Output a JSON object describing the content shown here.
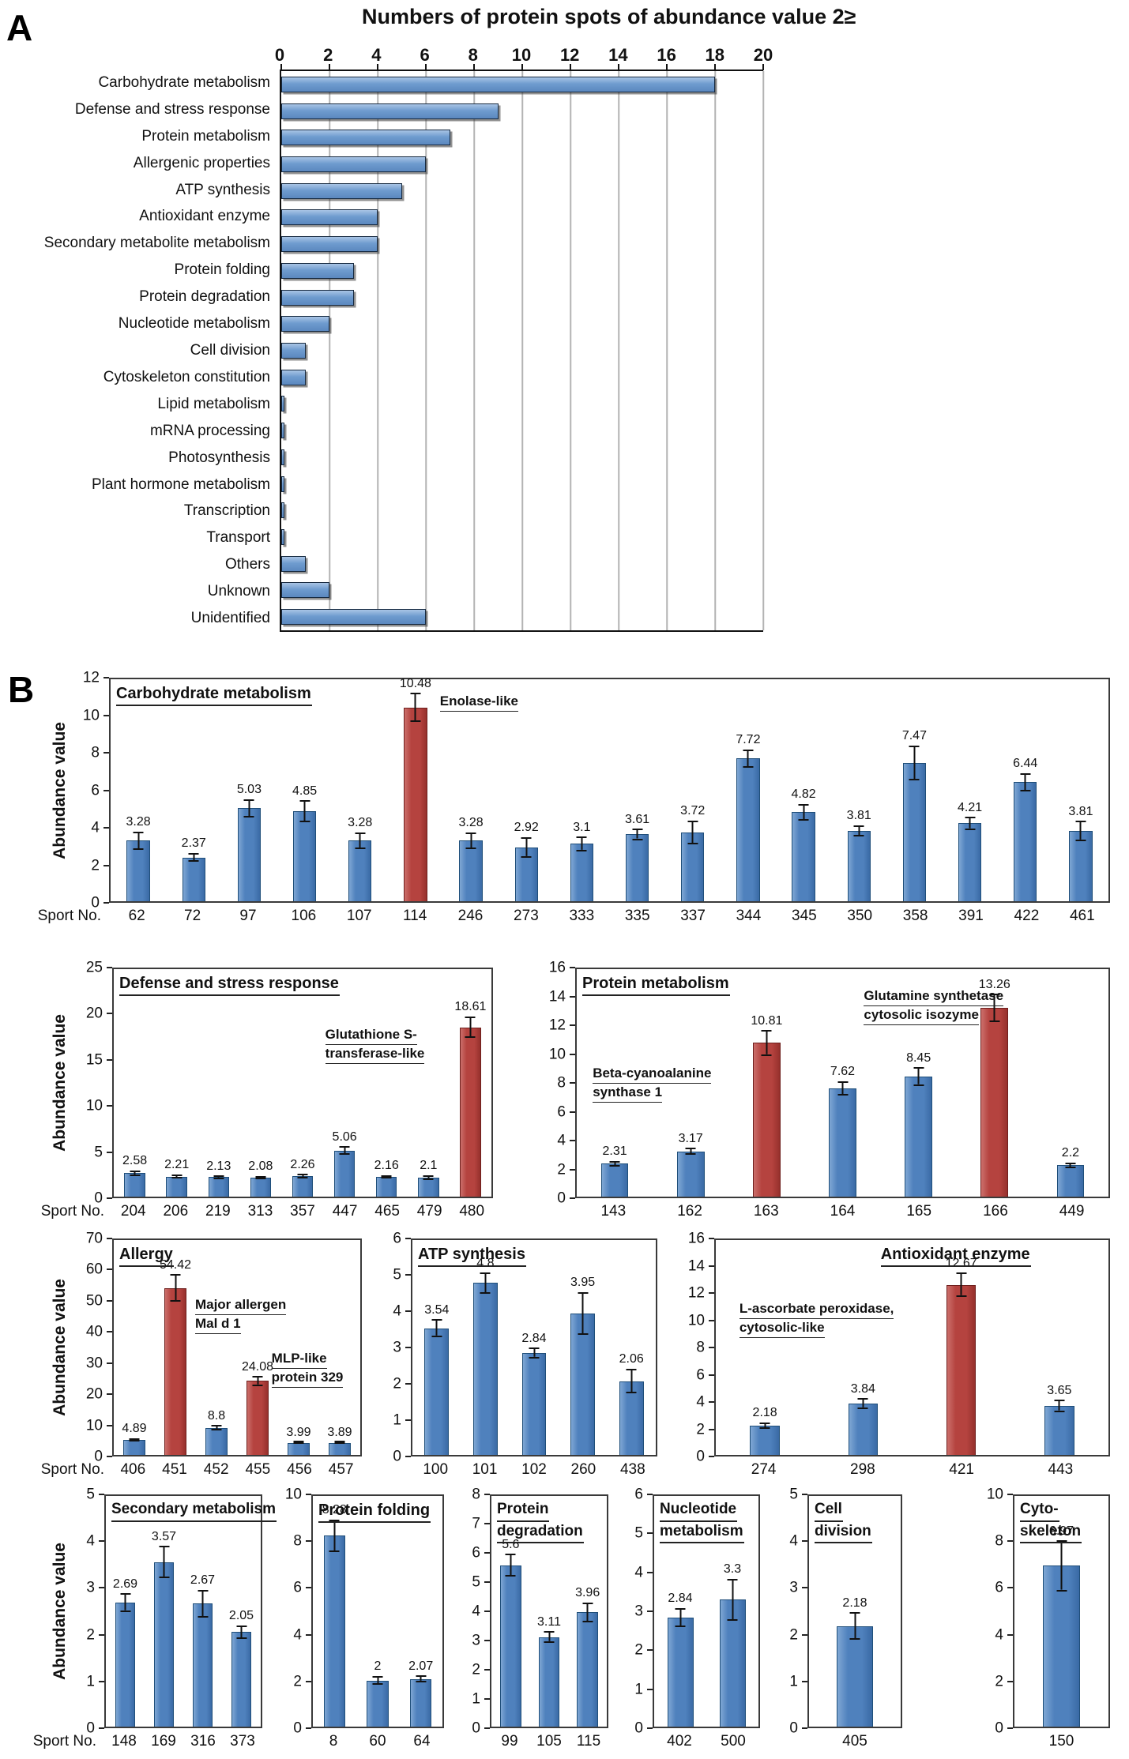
{
  "panels": {
    "a": "A",
    "b": "B"
  },
  "axes": {
    "ylabel": "Abundance value",
    "xprefix": "Sport No."
  },
  "colors": {
    "bar_blue": "#4f81bd",
    "bar_red": "#b5433f",
    "panel_a_bar": "#6f9ccf",
    "gridline": "#b3b3b3"
  },
  "chart_data": [
    {
      "id": "spot_counts",
      "type": "bar",
      "orientation": "horizontal",
      "title": "Numbers of protein spots of abundance value 2≥",
      "xlim": [
        0,
        20
      ],
      "xticks": [
        0,
        2,
        4,
        6,
        8,
        10,
        12,
        14,
        16,
        18,
        20
      ],
      "categories": [
        "Carbohydrate metabolism",
        "Defense and stress response",
        "Protein metabolism",
        "Allergenic properties",
        "ATP synthesis",
        "Antioxidant enzyme",
        "Secondary metabolite metabolism",
        "Protein folding",
        "Protein degradation",
        "Nucleotide metabolism",
        "Cell division",
        "Cytoskeleton constitution",
        "Lipid metabolism",
        "mRNA processing",
        "Photosynthesis",
        "Plant hormone metabolism",
        "Transcription",
        "Transport",
        "Others",
        "Unknown",
        "Unidentified"
      ],
      "values": [
        18,
        9,
        7,
        6,
        5,
        4,
        4,
        3,
        3,
        2,
        1,
        1,
        0,
        0,
        0,
        0,
        0,
        0,
        1,
        2,
        6
      ]
    },
    {
      "id": "carbohydrate_metabolism",
      "type": "bar",
      "title": "Carbohydrate metabolism",
      "ylim": [
        0,
        12
      ],
      "yticks": [
        0,
        2,
        4,
        6,
        8,
        10,
        12
      ],
      "categories": [
        "62",
        "72",
        "97",
        "106",
        "107",
        "114",
        "246",
        "273",
        "333",
        "335",
        "337",
        "344",
        "345",
        "350",
        "358",
        "391",
        "422",
        "461"
      ],
      "values": [
        3.28,
        2.37,
        5.03,
        4.85,
        3.28,
        10.48,
        3.28,
        2.92,
        3.1,
        3.61,
        3.72,
        7.72,
        4.82,
        3.81,
        7.47,
        4.21,
        6.44,
        3.81
      ],
      "errors": [
        0.5,
        0.25,
        0.5,
        0.6,
        0.45,
        0.8,
        0.45,
        0.55,
        0.4,
        0.3,
        0.65,
        0.5,
        0.45,
        0.3,
        0.95,
        0.35,
        0.5,
        0.55
      ],
      "red": [
        5
      ],
      "bar_ratio": 0.42,
      "show_ylabel": true,
      "show_xprefix": true,
      "annotations": [
        {
          "lines": [
            "Enolase-like"
          ],
          "x": 33,
          "y": 6
        }
      ]
    },
    {
      "id": "defense_stress_response",
      "type": "bar",
      "title": "Defense and stress response",
      "ylim": [
        0,
        25
      ],
      "yticks": [
        0,
        5,
        10,
        15,
        20,
        25
      ],
      "categories": [
        "204",
        "206",
        "219",
        "313",
        "357",
        "447",
        "465",
        "479",
        "480"
      ],
      "values": [
        2.58,
        2.21,
        2.13,
        2.08,
        2.26,
        5.06,
        2.16,
        2.1,
        18.61
      ],
      "errors": [
        0.3,
        0.25,
        0.2,
        0.2,
        0.25,
        0.5,
        0.2,
        0.25,
        1.2
      ],
      "red": [
        8
      ],
      "bar_ratio": 0.5,
      "show_ylabel": true,
      "show_xprefix": true,
      "annotations": [
        {
          "lines": [
            "Glutathione S-",
            "transferase-like"
          ],
          "x": 56,
          "y": 25
        }
      ]
    },
    {
      "id": "protein_metabolism",
      "type": "bar",
      "title": "Protein metabolism",
      "ylim": [
        0,
        16
      ],
      "yticks": [
        0,
        2,
        4,
        6,
        8,
        10,
        12,
        14,
        16
      ],
      "categories": [
        "143",
        "162",
        "163",
        "164",
        "165",
        "166",
        "449"
      ],
      "values": [
        2.31,
        3.17,
        10.81,
        7.62,
        8.45,
        13.26,
        2.2
      ],
      "errors": [
        0.2,
        0.25,
        0.9,
        0.5,
        0.65,
        1.0,
        0.2
      ],
      "red": [
        2,
        5
      ],
      "bar_ratio": 0.36,
      "annotations": [
        {
          "lines": [
            "Beta-cyanoalanine",
            "synthase 1"
          ],
          "x": 3,
          "y": 42
        },
        {
          "lines": [
            "Glutamine synthetase",
            "cytosolic isozyme"
          ],
          "x": 54,
          "y": 8
        }
      ]
    },
    {
      "id": "allergy",
      "type": "bar",
      "title": "Allergy",
      "ylim": [
        0,
        70
      ],
      "yticks": [
        0,
        10,
        20,
        30,
        40,
        50,
        60,
        70
      ],
      "categories": [
        "406",
        "451",
        "452",
        "455",
        "456",
        "457"
      ],
      "values": [
        4.89,
        54.42,
        8.8,
        24.08,
        3.99,
        3.89
      ],
      "errors": [
        0.6,
        4.5,
        0.9,
        1.6,
        0.4,
        0.4
      ],
      "red": [
        1,
        3
      ],
      "bar_ratio": 0.52,
      "show_ylabel": true,
      "show_xprefix": true,
      "annotations": [
        {
          "lines": [
            "Major allergen",
            "Mal d 1"
          ],
          "x": 33,
          "y": 26
        },
        {
          "lines": [
            "MLP-like",
            "protein 329"
          ],
          "x": 64,
          "y": 51
        }
      ]
    },
    {
      "id": "atp_synthesis",
      "type": "bar",
      "title": "ATP synthesis",
      "ylim": [
        0,
        6
      ],
      "yticks": [
        0,
        1,
        2,
        3,
        4,
        5,
        6
      ],
      "categories": [
        "100",
        "101",
        "102",
        "260",
        "438"
      ],
      "values": [
        3.54,
        4.8,
        2.84,
        3.95,
        2.06
      ],
      "errors": [
        0.25,
        0.3,
        0.15,
        0.6,
        0.35
      ],
      "bar_ratio": 0.5
    },
    {
      "id": "antioxidant_enzyme",
      "type": "bar",
      "title": "Antioxidant enzyme",
      "ylim": [
        0,
        16
      ],
      "yticks": [
        0,
        2,
        4,
        6,
        8,
        10,
        12,
        14,
        16
      ],
      "categories": [
        "274",
        "298",
        "421",
        "443"
      ],
      "values": [
        2.18,
        3.84,
        12.67,
        3.65
      ],
      "errors": [
        0.25,
        0.4,
        0.9,
        0.45
      ],
      "red": [
        2
      ],
      "bar_ratio": 0.3,
      "annotations": [
        {
          "lines": [
            "L-ascorbate peroxidase,",
            "cytosolic-like"
          ],
          "x": 6,
          "y": 28
        }
      ]
    },
    {
      "id": "secondary_metabolism",
      "type": "bar",
      "title": "Secondary metabolism",
      "ylim": [
        0,
        5
      ],
      "yticks": [
        0,
        1,
        2,
        3,
        4,
        5
      ],
      "categories": [
        "148",
        "169",
        "316",
        "373"
      ],
      "values": [
        2.69,
        3.57,
        2.67,
        2.05
      ],
      "errors": [
        0.2,
        0.35,
        0.3,
        0.15
      ],
      "bar_ratio": 0.5,
      "show_ylabel": true,
      "show_xprefix": true
    },
    {
      "id": "protein_folding",
      "type": "bar",
      "title": "Protein folding",
      "ylim": [
        0,
        10
      ],
      "yticks": [
        0,
        2,
        4,
        6,
        8,
        10
      ],
      "categories": [
        "8",
        "60",
        "64"
      ],
      "values": [
        8.28,
        2,
        2.07
      ],
      "errors": [
        0.7,
        0.2,
        0.15
      ],
      "bar_ratio": 0.5
    },
    {
      "id": "protein_degradation",
      "type": "bar",
      "title": "Protein\ndegradation",
      "ylim": [
        0,
        8
      ],
      "yticks": [
        0,
        1,
        2,
        3,
        4,
        5,
        6,
        7,
        8
      ],
      "categories": [
        "99",
        "105",
        "115"
      ],
      "values": [
        5.6,
        3.11,
        3.96
      ],
      "errors": [
        0.4,
        0.2,
        0.35
      ],
      "bar_ratio": 0.55
    },
    {
      "id": "nucleotide_metabolism",
      "type": "bar",
      "title": "Nucleotide\nmetabolism",
      "ylim": [
        0,
        6
      ],
      "yticks": [
        0,
        1,
        2,
        3,
        4,
        5,
        6
      ],
      "categories": [
        "402",
        "500"
      ],
      "values": [
        2.84,
        3.3
      ],
      "errors": [
        0.25,
        0.55
      ],
      "bar_ratio": 0.5
    },
    {
      "id": "cell_division",
      "type": "bar",
      "title": "Cell\ndivision",
      "ylim": [
        0,
        5
      ],
      "yticks": [
        0,
        1,
        2,
        3,
        4,
        5
      ],
      "categories": [
        "405"
      ],
      "values": [
        2.18
      ],
      "errors": [
        0.3
      ],
      "bar_ratio": 0.4
    },
    {
      "id": "cytoskeleton",
      "type": "bar",
      "title": "Cyto-\nskeleton",
      "ylim": [
        0,
        10
      ],
      "yticks": [
        0,
        2,
        4,
        6,
        8,
        10
      ],
      "categories": [
        "150"
      ],
      "values": [
        6.97
      ],
      "errors": [
        1.1
      ],
      "bar_ratio": 0.4
    }
  ]
}
